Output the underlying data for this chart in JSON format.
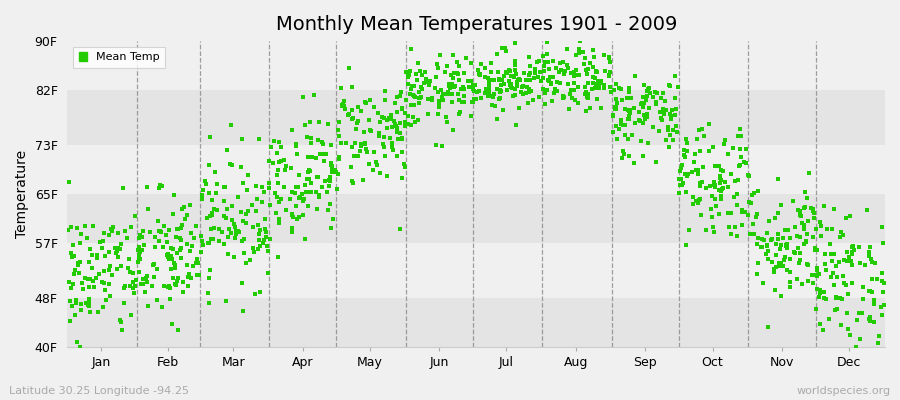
{
  "title": "Monthly Mean Temperatures 1901 - 2009",
  "ylabel": "Temperature",
  "subtitle_left": "Latitude 30.25 Longitude -94.25",
  "subtitle_right": "worldspecies.org",
  "legend_label": "Mean Temp",
  "ytick_labels": [
    "40F",
    "48F",
    "57F",
    "65F",
    "73F",
    "82F",
    "90F"
  ],
  "ytick_values": [
    40,
    48,
    57,
    65,
    73,
    82,
    90
  ],
  "ylim": [
    40,
    90
  ],
  "xlim": [
    0,
    365
  ],
  "months": [
    "Jan",
    "Feb",
    "Mar",
    "Apr",
    "May",
    "Jun",
    "Jul",
    "Aug",
    "Sep",
    "Oct",
    "Nov",
    "Dec"
  ],
  "month_starts": [
    0,
    31,
    59,
    90,
    120,
    151,
    181,
    212,
    243,
    273,
    304,
    334
  ],
  "month_mids": [
    15,
    45,
    74,
    105,
    135,
    166,
    196,
    227,
    258,
    288,
    319,
    349
  ],
  "dot_color": "#22cc00",
  "band_color_light": "#f0f0f0",
  "band_color_dark": "#e4e4e4",
  "background_color": "#f0f0f0",
  "n_years": 109,
  "monthly_means": [
    52.0,
    54.5,
    61.0,
    68.0,
    75.0,
    81.5,
    83.5,
    83.5,
    78.0,
    67.5,
    57.5,
    51.5
  ],
  "monthly_stds": [
    5.5,
    5.5,
    5.5,
    5.0,
    4.5,
    3.0,
    2.5,
    2.5,
    3.5,
    5.0,
    5.0,
    5.5
  ],
  "seed": 42,
  "title_fontsize": 14,
  "axis_fontsize": 9,
  "ylabel_fontsize": 10
}
